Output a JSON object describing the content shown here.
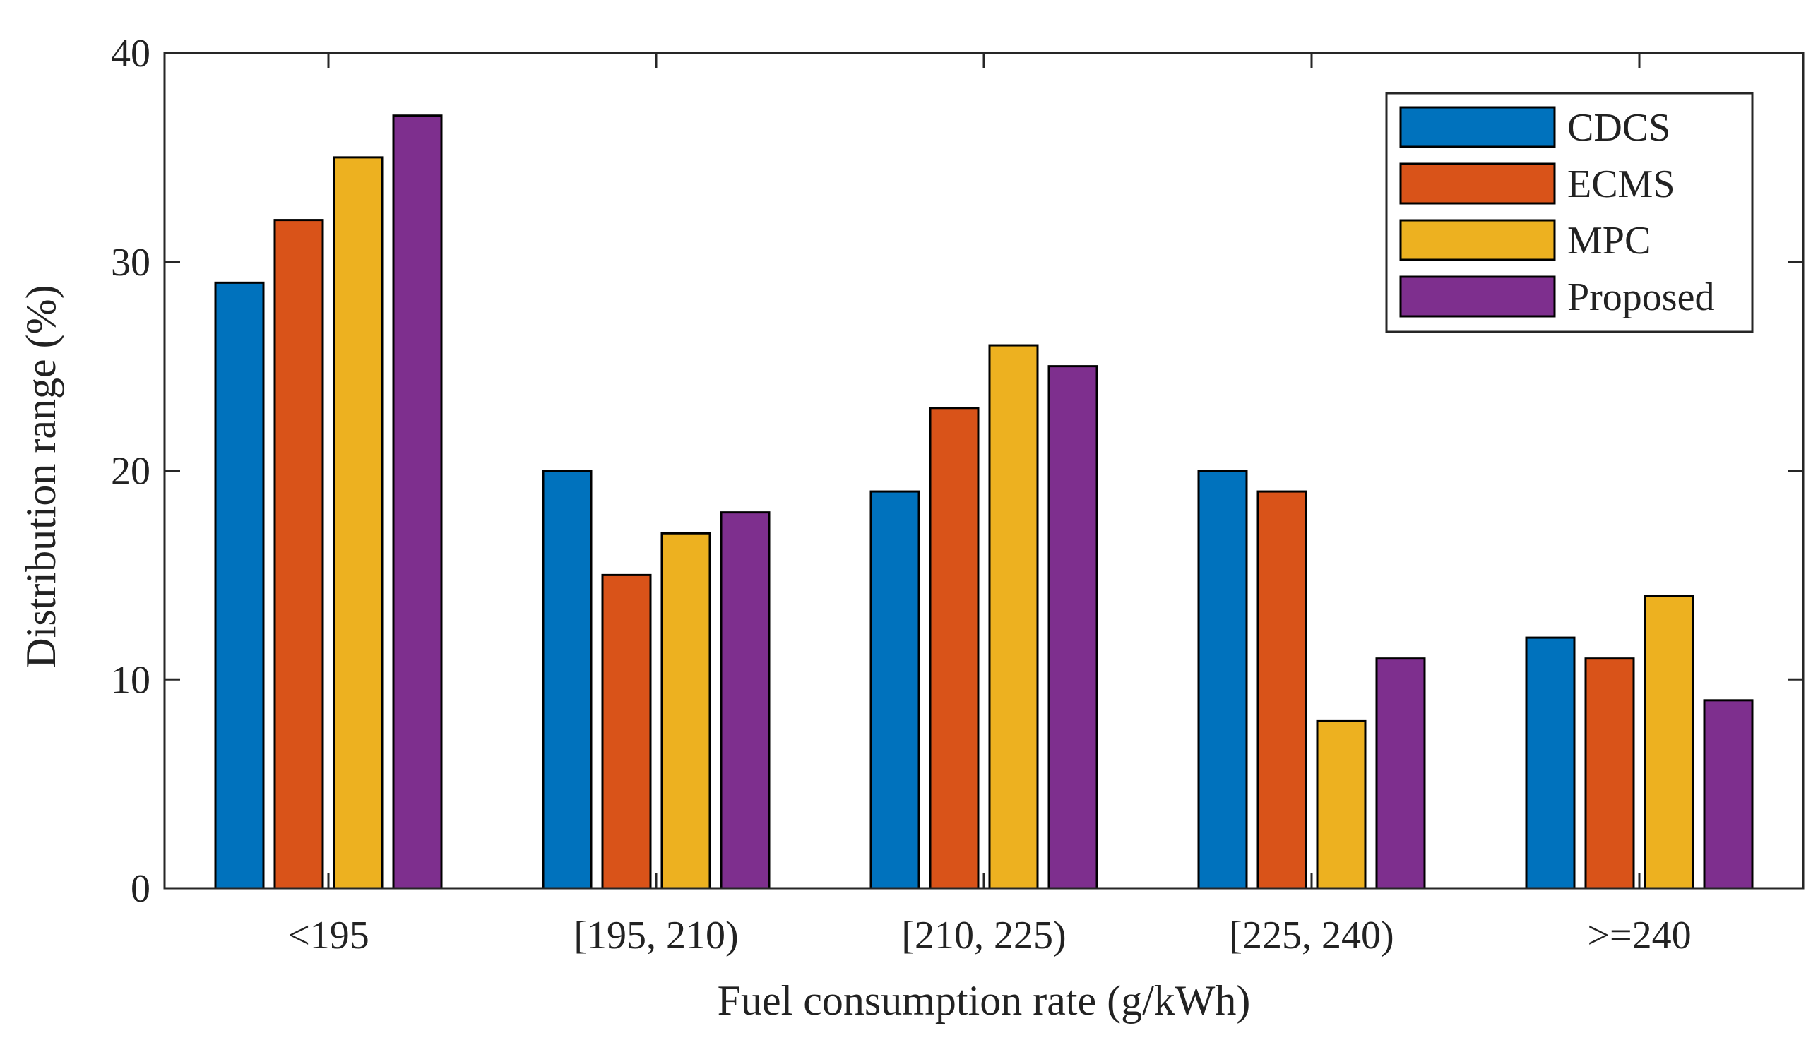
{
  "chart_data": {
    "type": "bar",
    "title": "",
    "xlabel": "Fuel consumption rate (g/kWh)",
    "ylabel": "Distribution range (%)",
    "categories": [
      "<195",
      "[195, 210)",
      "[210, 225)",
      "[225, 240)",
      ">=240"
    ],
    "series": [
      {
        "name": "CDCS",
        "color": "#0072BD",
        "values": [
          29,
          20,
          19,
          20,
          12
        ]
      },
      {
        "name": "ECMS",
        "color": "#D95319",
        "values": [
          32,
          15,
          23,
          19,
          11
        ]
      },
      {
        "name": "MPC",
        "color": "#EDB120",
        "values": [
          35,
          17,
          26,
          8,
          14
        ]
      },
      {
        "name": "Proposed",
        "color": "#7E2F8E",
        "values": [
          37,
          18,
          25,
          11,
          9
        ]
      }
    ],
    "ylim": [
      0,
      40
    ],
    "yticks": [
      0,
      10,
      20,
      30,
      40
    ],
    "yticklabels": [
      "0",
      "10",
      "20",
      "30",
      "40"
    ],
    "legend_position": "top-right",
    "grid": false
  }
}
